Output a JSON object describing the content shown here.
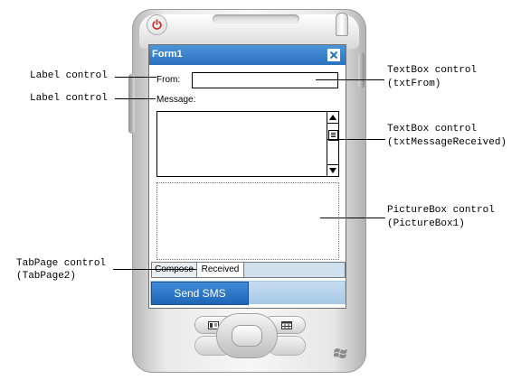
{
  "form": {
    "title": "Form1",
    "from_label": "From:",
    "message_label": "Message:",
    "tabs": [
      {
        "label": "Compose"
      },
      {
        "label": "Received"
      }
    ],
    "softkey_left": "Send SMS"
  },
  "callouts": {
    "label_control_1": "Label control",
    "label_control_2": "Label control",
    "textbox_from_1": "TextBox control",
    "textbox_from_2": "(txtFrom)",
    "textbox_msg_1": "TextBox control",
    "textbox_msg_2": "(txtMessageReceived)",
    "picturebox_1": "PictureBox control",
    "picturebox_2": "(PictureBox1)",
    "tabpage_1": "TabPage control",
    "tabpage_2": "(TabPage2)"
  },
  "colors": {
    "titlebar": "#2b72bf",
    "softkey": "#1f66b8"
  },
  "icons": [
    "power-icon",
    "close-icon",
    "scroll-up-arrow-icon",
    "scroll-down-arrow-icon",
    "contacts-icon",
    "calendar-icon",
    "windows-logo-icon"
  ]
}
